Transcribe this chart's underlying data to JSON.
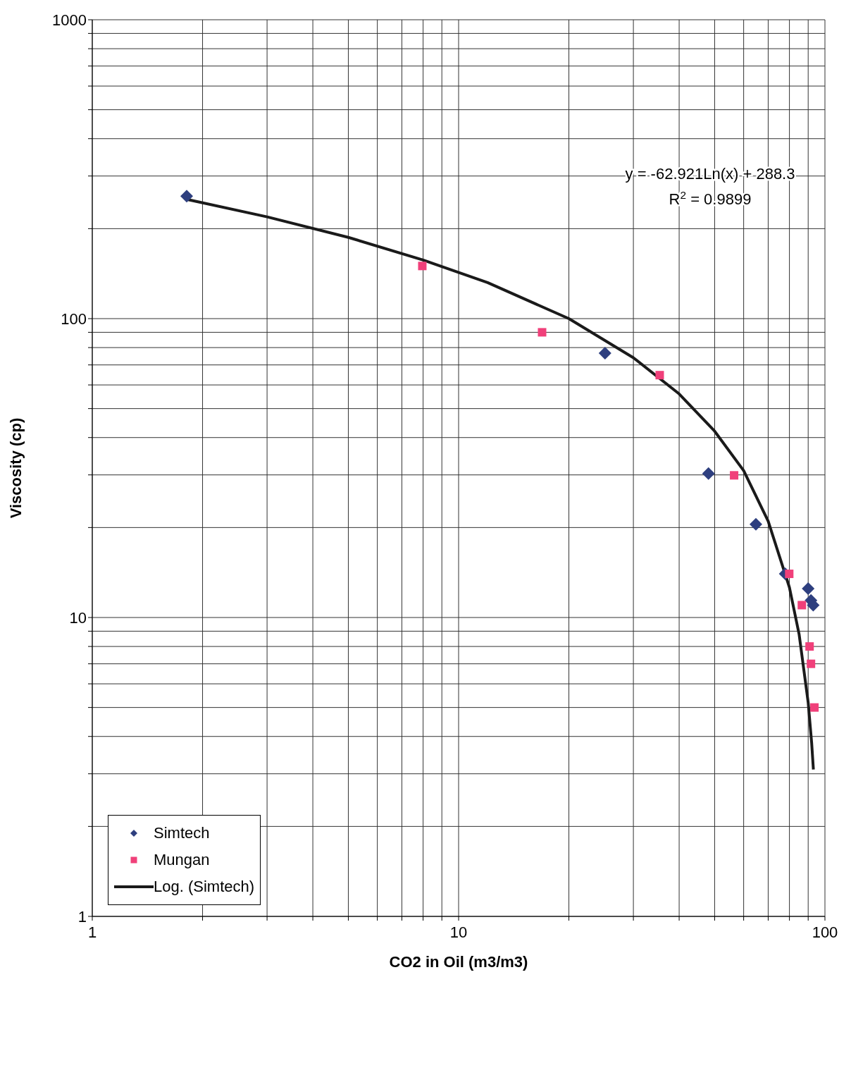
{
  "chart_data": {
    "type": "scatter",
    "xlabel": "CO2 in Oil (m3/m3)",
    "ylabel": "Viscosity (cp)",
    "log": "xy",
    "grid": true,
    "legend": "bottom left",
    "line_style": "solid",
    "xlim": [
      1,
      100
    ],
    "ylim": [
      1,
      1000
    ],
    "xticks": [
      1,
      {
        "value": 2,
        "label": null
      },
      {
        "value": 3,
        "label": null
      },
      {
        "value": 4,
        "label": null
      },
      {
        "value": 5,
        "label": null
      },
      {
        "value": 6,
        "label": null
      },
      {
        "value": 7,
        "label": null
      },
      {
        "value": 8,
        "label": null
      },
      {
        "value": 9,
        "label": null
      },
      10,
      {
        "value": 20,
        "label": null
      },
      {
        "value": 30,
        "label": null
      },
      {
        "value": 40,
        "label": null
      },
      {
        "value": 50,
        "label": null
      },
      {
        "value": 60,
        "label": null
      },
      {
        "value": 70,
        "label": null
      },
      {
        "value": 80,
        "label": null
      },
      {
        "value": 90,
        "label": null
      },
      100
    ],
    "yticks": [
      1,
      {
        "value": 2,
        "label": null
      },
      {
        "value": 3,
        "label": null
      },
      {
        "value": 4,
        "label": null
      },
      {
        "value": 5,
        "label": null
      },
      {
        "value": 6,
        "label": null
      },
      {
        "value": 7,
        "label": null
      },
      {
        "value": 8,
        "label": null
      },
      {
        "value": 9,
        "label": null
      },
      10,
      {
        "value": 20,
        "label": null
      },
      {
        "value": 30,
        "label": null
      },
      {
        "value": 40,
        "label": null
      },
      {
        "value": 50,
        "label": null
      },
      {
        "value": 60,
        "label": null
      },
      {
        "value": 70,
        "label": null
      },
      {
        "value": 80,
        "label": null
      },
      {
        "value": 90,
        "label": null
      },
      100,
      {
        "value": 200,
        "label": null
      },
      {
        "value": 300,
        "label": null
      },
      {
        "value": 400,
        "label": null
      },
      {
        "value": 500,
        "label": null
      },
      {
        "value": 600,
        "label": null
      },
      {
        "value": 700,
        "label": null
      },
      {
        "value": 800,
        "label": null
      },
      {
        "value": 900,
        "label": null
      },
      1000
    ],
    "annotations": [
      "y = -62.921Ln(x) + 288.3",
      "R$^{2}$ = 0.9899"
    ],
    "series": [
      {
        "name": "Simtech",
        "marker": "diamond",
        "color": "#2e3f7f",
        "x": [
          1.81,
          25.1,
          48.1,
          64.8,
          77.9,
          90,
          91.6,
          92.9
        ],
        "values": [
          257,
          76.6,
          30.3,
          20.5,
          14,
          12.5,
          11.4,
          11
        ]
      },
      {
        "name": "Mungan",
        "marker": "square",
        "color": "#f0407a",
        "x": [
          7.96,
          16.9,
          35.4,
          56.5,
          79.9,
          86.5,
          90.8,
          91.6,
          93.6
        ],
        "values": [
          150,
          90,
          64.7,
          29.9,
          14,
          11,
          8,
          7,
          5
        ]
      },
      {
        "name": "Log. (Simtech)",
        "type": "line",
        "marker": "none",
        "color": "#1a1a1a",
        "x": [
          1.8,
          3,
          5,
          8,
          12,
          20,
          30,
          40,
          50,
          60,
          70,
          80,
          85,
          90,
          92,
          93
        ],
        "values": [
          251,
          219,
          187,
          157,
          132,
          100,
          74,
          56,
          42,
          31,
          21,
          12.6,
          8.8,
          5.2,
          3.8,
          3.1
        ]
      }
    ]
  }
}
